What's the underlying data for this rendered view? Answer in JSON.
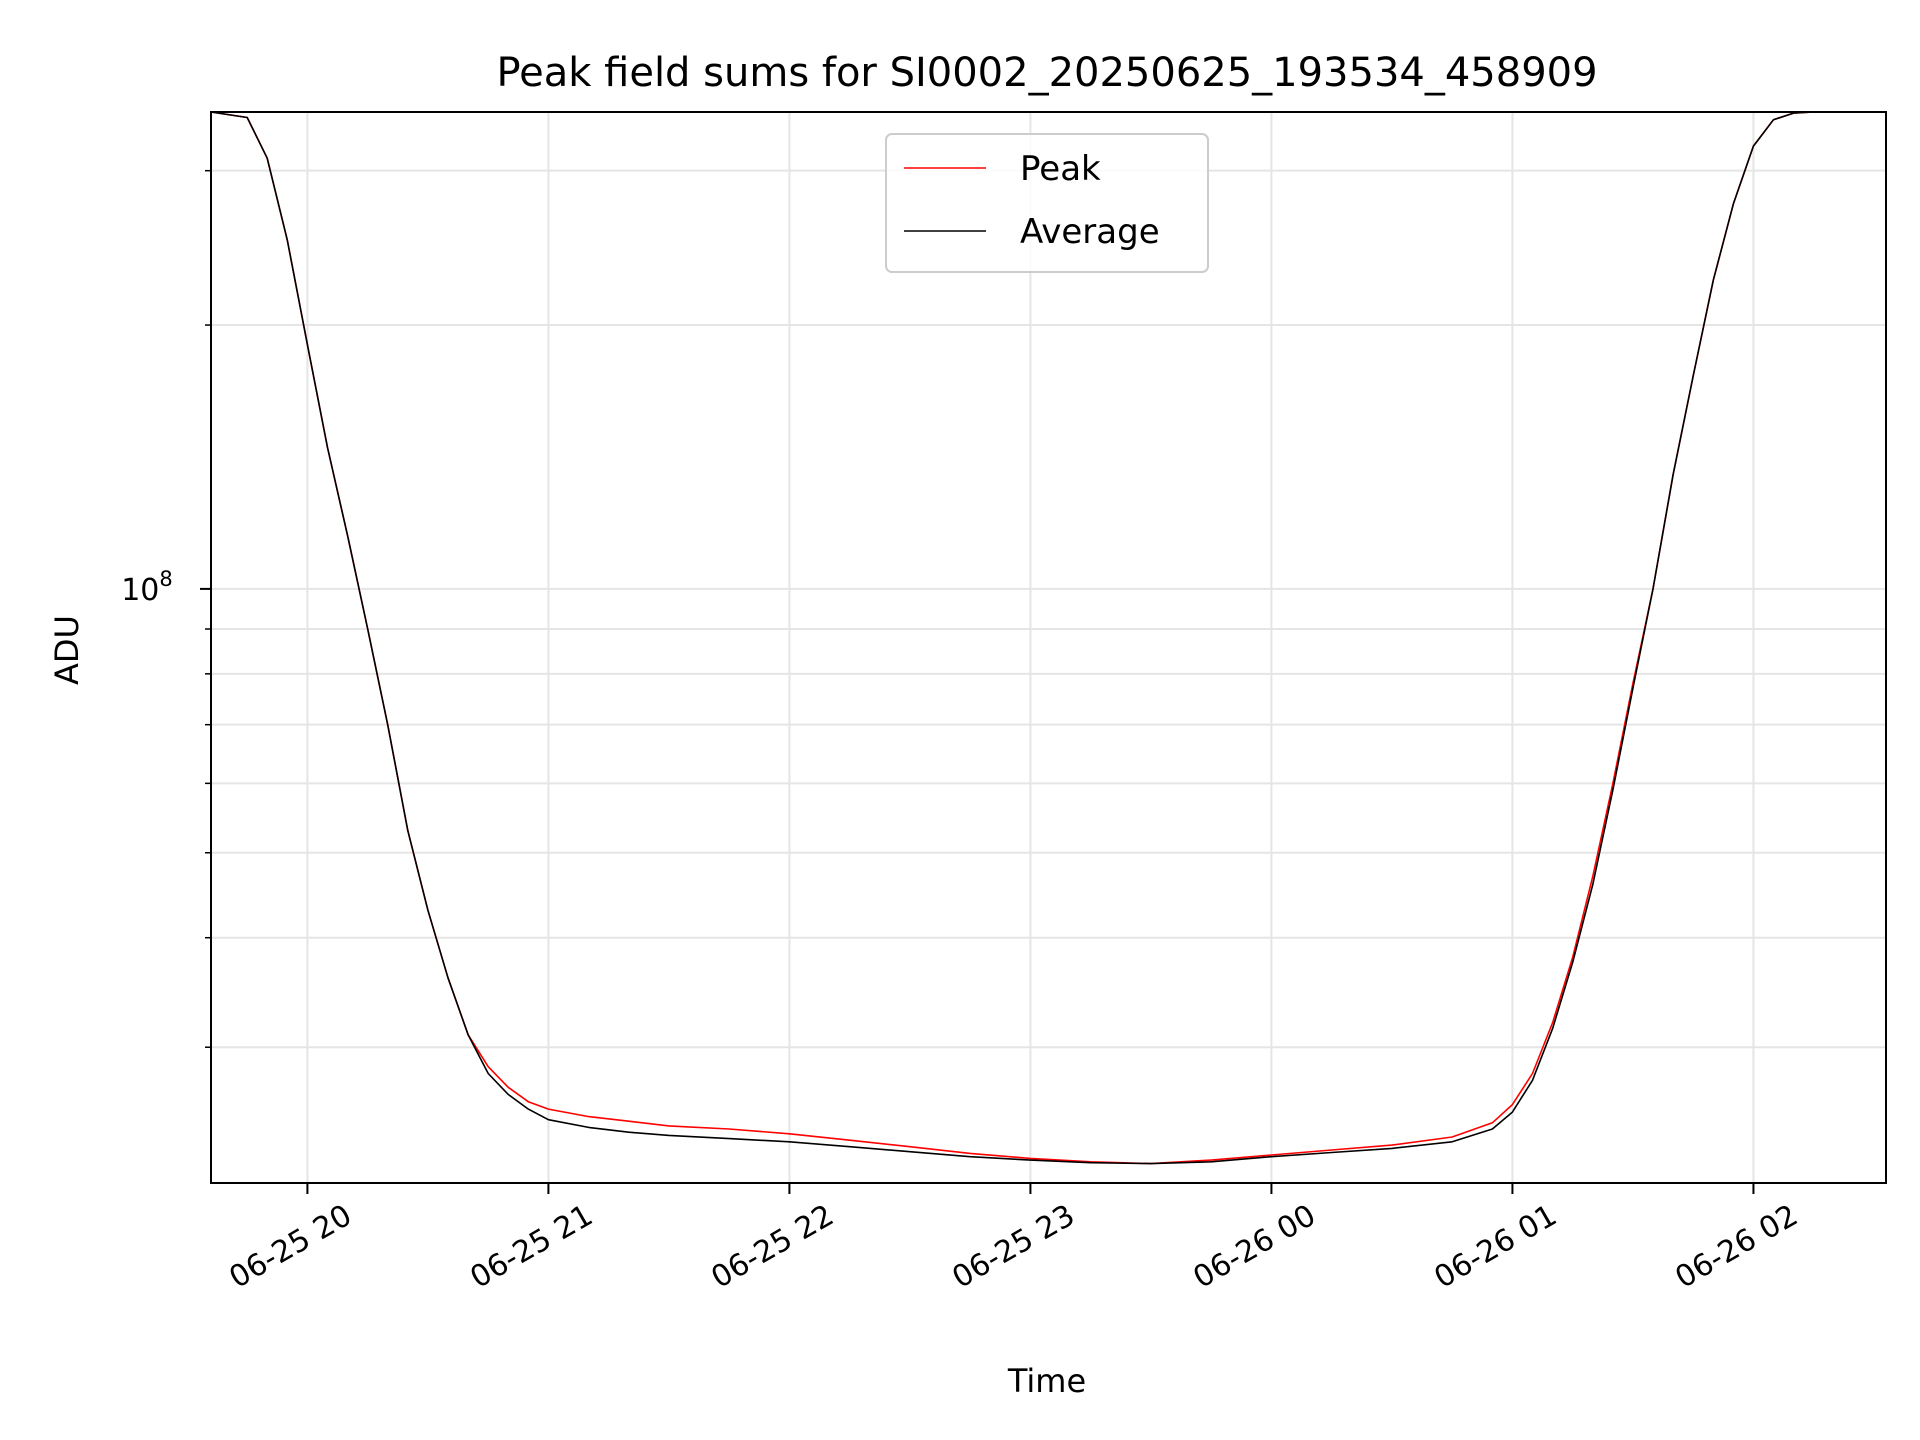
{
  "chart_data": {
    "type": "line",
    "title": "Peak field sums for SI0002_20250625_193534_458909",
    "xlabel": "Time",
    "ylabel": "ADU",
    "y_scale": "log",
    "ylim": [
      21000000,
      350000000
    ],
    "xlim": [
      "2025-06-25 19:36",
      "2025-06-26 02:33"
    ],
    "grid": true,
    "legend": "upper-center",
    "x_ticks": [
      {
        "t": "2025-06-25 20:00",
        "label": "06-25 20"
      },
      {
        "t": "2025-06-25 21:00",
        "label": "06-25 21"
      },
      {
        "t": "2025-06-25 22:00",
        "label": "06-25 22"
      },
      {
        "t": "2025-06-25 23:00",
        "label": "06-25 23"
      },
      {
        "t": "2025-06-26 00:00",
        "label": "06-26 00"
      },
      {
        "t": "2025-06-26 01:00",
        "label": "06-26 01"
      },
      {
        "t": "2025-06-26 02:00",
        "label": "06-26 02"
      }
    ],
    "y_major_ticks": [
      {
        "v": 100000000,
        "label": "10",
        "exp": "8"
      }
    ],
    "y_minor_ticks": [
      30000000,
      40000000,
      50000000,
      60000000,
      70000000,
      80000000,
      90000000,
      200000000,
      300000000
    ],
    "series": [
      {
        "name": "Peak",
        "color": "#ff0000",
        "x": [
          "2025-06-25 19:36",
          "2025-06-25 19:45",
          "2025-06-25 19:50",
          "2025-06-25 19:55",
          "2025-06-25 20:00",
          "2025-06-25 20:05",
          "2025-06-25 20:10",
          "2025-06-25 20:15",
          "2025-06-25 20:20",
          "2025-06-25 20:25",
          "2025-06-25 20:30",
          "2025-06-25 20:35",
          "2025-06-25 20:40",
          "2025-06-25 20:45",
          "2025-06-25 20:50",
          "2025-06-25 20:55",
          "2025-06-25 21:00",
          "2025-06-25 21:10",
          "2025-06-25 21:20",
          "2025-06-25 21:30",
          "2025-06-25 21:45",
          "2025-06-25 22:00",
          "2025-06-25 22:15",
          "2025-06-25 22:30",
          "2025-06-25 22:45",
          "2025-06-25 23:00",
          "2025-06-25 23:15",
          "2025-06-25 23:30",
          "2025-06-25 23:45",
          "2025-06-26 00:00",
          "2025-06-26 00:15",
          "2025-06-26 00:30",
          "2025-06-26 00:45",
          "2025-06-26 00:55",
          "2025-06-26 01:00",
          "2025-06-26 01:05",
          "2025-06-26 01:10",
          "2025-06-26 01:15",
          "2025-06-26 01:20",
          "2025-06-26 01:25",
          "2025-06-26 01:30",
          "2025-06-26 01:35",
          "2025-06-26 01:40",
          "2025-06-26 01:45",
          "2025-06-26 01:50",
          "2025-06-26 01:55",
          "2025-06-26 02:00",
          "2025-06-26 02:05",
          "2025-06-26 02:10",
          "2025-06-26 02:15",
          "2025-06-26 02:20",
          "2025-06-26 02:33"
        ],
        "y": [
          350000000,
          345000000,
          310000000,
          250000000,
          190000000,
          145000000,
          115000000,
          90000000,
          70000000,
          53000000,
          43000000,
          36000000,
          31000000,
          28500000,
          27000000,
          26000000,
          25500000,
          25000000,
          24700000,
          24400000,
          24200000,
          23900000,
          23500000,
          23100000,
          22700000,
          22400000,
          22200000,
          22100000,
          22300000,
          22600000,
          22900000,
          23200000,
          23700000,
          24600000,
          25800000,
          28000000,
          32000000,
          38000000,
          47000000,
          60000000,
          78000000,
          100000000,
          135000000,
          175000000,
          225000000,
          275000000,
          320000000,
          343000000,
          349000000,
          350000000,
          350000000,
          350000000
        ]
      },
      {
        "name": "Average",
        "color": "#000000",
        "x": [
          "2025-06-25 19:36",
          "2025-06-25 19:45",
          "2025-06-25 19:50",
          "2025-06-25 19:55",
          "2025-06-25 20:00",
          "2025-06-25 20:05",
          "2025-06-25 20:10",
          "2025-06-25 20:15",
          "2025-06-25 20:20",
          "2025-06-25 20:25",
          "2025-06-25 20:30",
          "2025-06-25 20:35",
          "2025-06-25 20:40",
          "2025-06-25 20:45",
          "2025-06-25 20:50",
          "2025-06-25 20:55",
          "2025-06-25 21:00",
          "2025-06-25 21:10",
          "2025-06-25 21:20",
          "2025-06-25 21:30",
          "2025-06-25 21:45",
          "2025-06-25 22:00",
          "2025-06-25 22:15",
          "2025-06-25 22:30",
          "2025-06-25 22:45",
          "2025-06-25 23:00",
          "2025-06-25 23:15",
          "2025-06-25 23:30",
          "2025-06-25 23:45",
          "2025-06-26 00:00",
          "2025-06-26 00:15",
          "2025-06-26 00:30",
          "2025-06-26 00:45",
          "2025-06-26 00:55",
          "2025-06-26 01:00",
          "2025-06-26 01:05",
          "2025-06-26 01:10",
          "2025-06-26 01:15",
          "2025-06-26 01:20",
          "2025-06-26 01:25",
          "2025-06-26 01:30",
          "2025-06-26 01:35",
          "2025-06-26 01:40",
          "2025-06-26 01:45",
          "2025-06-26 01:50",
          "2025-06-26 01:55",
          "2025-06-26 02:00",
          "2025-06-26 02:05",
          "2025-06-26 02:10",
          "2025-06-26 02:15",
          "2025-06-26 02:20",
          "2025-06-26 02:33"
        ],
        "y": [
          350000000,
          345000000,
          310000000,
          250000000,
          190000000,
          145000000,
          115000000,
          90000000,
          70000000,
          53000000,
          43000000,
          36000000,
          31000000,
          28000000,
          26500000,
          25500000,
          24800000,
          24300000,
          24000000,
          23800000,
          23600000,
          23400000,
          23100000,
          22800000,
          22500000,
          22300000,
          22150000,
          22100000,
          22200000,
          22500000,
          22750000,
          23000000,
          23400000,
          24200000,
          25300000,
          27500000,
          31500000,
          37500000,
          46000000,
          59000000,
          77000000,
          100000000,
          135000000,
          175000000,
          225000000,
          275000000,
          320000000,
          343000000,
          349000000,
          350000000,
          350000000,
          350000000
        ]
      }
    ]
  }
}
